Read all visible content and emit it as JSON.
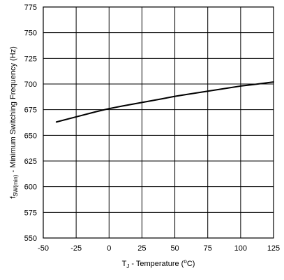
{
  "chart_data": {
    "type": "line",
    "title": "",
    "xlabel": {
      "main": "T",
      "sub": "J",
      "rest": " - Temperature (",
      "sup": "o",
      "end": "C)"
    },
    "ylabel": {
      "main": "f",
      "sub": "SW(min)",
      "rest": " - Minimum Switching Frequency (Hz)"
    },
    "xlim": [
      -50,
      125
    ],
    "ylim": [
      550,
      775
    ],
    "xticks": [
      -50,
      -25,
      0,
      25,
      50,
      75,
      100,
      125
    ],
    "yticks": [
      550,
      575,
      600,
      625,
      650,
      675,
      700,
      725,
      750,
      775
    ],
    "grid": true,
    "series": [
      {
        "x": [
          -40,
          -25,
          -10,
          0,
          10,
          25,
          40,
          50,
          60,
          75,
          90,
          100,
          110,
          125
        ],
        "y": [
          663,
          668,
          673,
          676,
          678.5,
          682,
          685.5,
          688,
          690,
          693,
          696,
          698,
          699.5,
          702
        ]
      }
    ]
  }
}
